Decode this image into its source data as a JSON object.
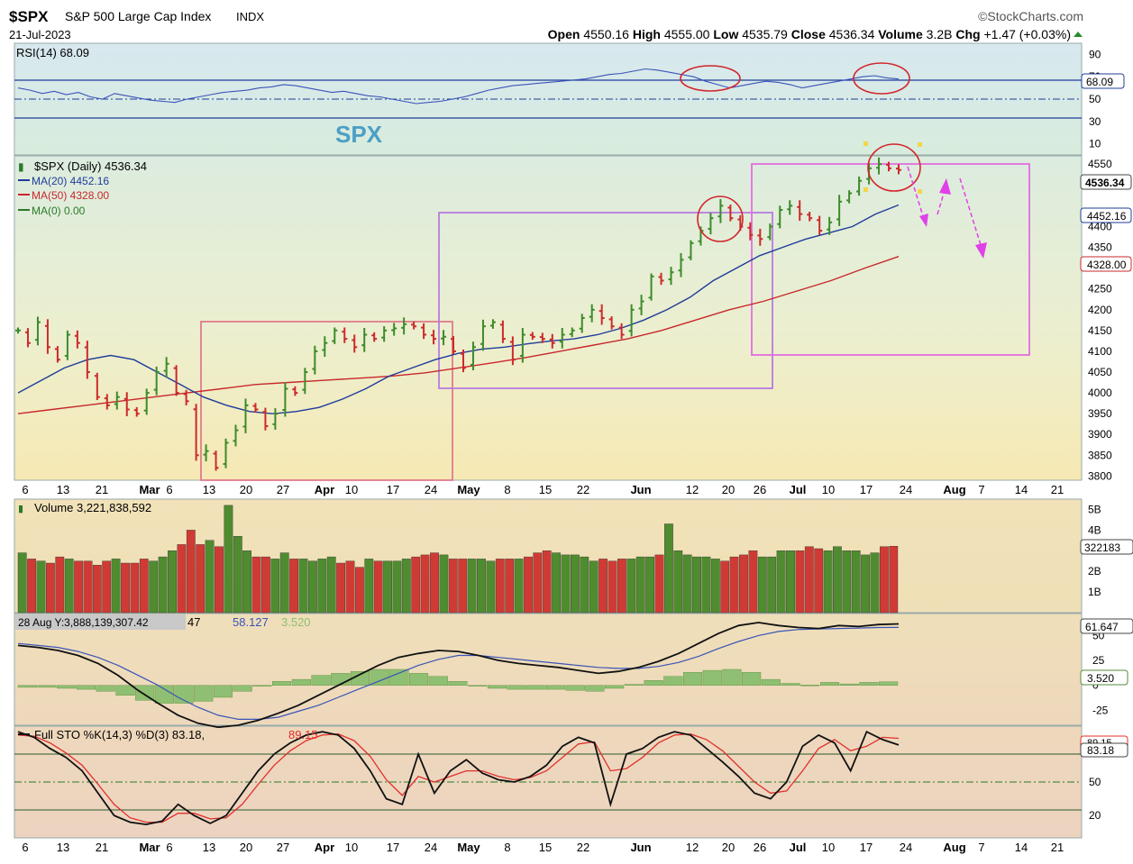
{
  "header": {
    "symbol": "$SPX",
    "name": "S&P 500 Large Cap Index",
    "exchange": "INDX",
    "date": "21-Jul-2023",
    "brand": "©StockCharts.com",
    "quote": {
      "open_label": "Open",
      "open": "4550.16",
      "high_label": "High",
      "high": "4555.00",
      "low_label": "Low",
      "low": "4535.79",
      "close_label": "Close",
      "close": "4536.34",
      "volume_label": "Volume",
      "volume": "3.2B",
      "chg_label": "Chg",
      "chg": "+1.47 (+0.03%)",
      "chg_icon": "triangle-up-icon"
    }
  },
  "panels": {
    "rsi": {
      "legend": "RSI(14) 68.09",
      "value_tag": "68.09",
      "ticks": [
        "90",
        "70",
        "50",
        "30",
        "10"
      ],
      "watermark": "SPX"
    },
    "price": {
      "legend": [
        "$SPX (Daily) 4536.34",
        "MA(20) 4452.16",
        "MA(50) 4328.00",
        "MA(0) 0.00"
      ],
      "tags": [
        "4536.34",
        "4452.16",
        "4328.00"
      ],
      "ticks": [
        "4550",
        "4500",
        "4400",
        "4350",
        "4300",
        "4250",
        "4200",
        "4150",
        "4100",
        "4050",
        "4000",
        "3950",
        "3900",
        "3850",
        "3800"
      ]
    },
    "volume": {
      "legend": "Volume 3,221,838,592",
      "ticks": [
        "5B",
        "4B",
        "3B",
        "2B",
        "1B"
      ],
      "value_tag": "322183"
    },
    "macd": {
      "legend_tooltip": "28 Aug Y:3,888,139,307.42",
      "legend_rest": "47",
      "signal_value": "58.127",
      "hist_value": "3.520",
      "tags": [
        "61.647",
        "3.520"
      ],
      "ticks": [
        "50",
        "25",
        "0",
        "-25"
      ]
    },
    "sto": {
      "legend_a": "Full STO %K(14,3) %D(3) 83.18,",
      "legend_b": "89.15",
      "tags": [
        "89.15",
        "83.18"
      ],
      "ticks": [
        "80",
        "50",
        "20"
      ]
    }
  },
  "x_axis": {
    "labels": [
      {
        "t": "6",
        "b": false
      },
      {
        "t": "13",
        "b": false
      },
      {
        "t": "21",
        "b": false
      },
      {
        "t": "Mar",
        "b": true
      },
      {
        "t": "6",
        "b": false
      },
      {
        "t": "13",
        "b": false
      },
      {
        "t": "20",
        "b": false
      },
      {
        "t": "27",
        "b": false
      },
      {
        "t": "Apr",
        "b": true
      },
      {
        "t": "10",
        "b": false
      },
      {
        "t": "17",
        "b": false
      },
      {
        "t": "24",
        "b": false
      },
      {
        "t": "May",
        "b": true
      },
      {
        "t": "8",
        "b": false
      },
      {
        "t": "15",
        "b": false
      },
      {
        "t": "22",
        "b": false
      },
      {
        "t": "Jun",
        "b": true
      },
      {
        "t": "12",
        "b": false
      },
      {
        "t": "20",
        "b": false
      },
      {
        "t": "26",
        "b": false
      },
      {
        "t": "Jul",
        "b": true
      },
      {
        "t": "10",
        "b": false
      },
      {
        "t": "17",
        "b": false
      },
      {
        "t": "24",
        "b": false
      },
      {
        "t": "Aug",
        "b": true
      },
      {
        "t": "7",
        "b": false
      },
      {
        "t": "14",
        "b": false
      },
      {
        "t": "21",
        "b": false
      }
    ]
  },
  "colors": {
    "up": "#3d8b2a",
    "down": "#cc2a2a",
    "ma20": "#1f3c9a",
    "ma50": "#c8282c",
    "annotation_box_red": "#e07b8c",
    "annotation_box_purple": "#b97ae0",
    "annotation_box_magenta": "#e36de0",
    "arrow": "#e040e8",
    "circle": "#d2262c"
  },
  "chart_data": [
    {
      "type": "line",
      "title": "RSI(14) 68.09",
      "ylim": [
        0,
        100
      ],
      "levels": [
        70,
        50,
        30
      ],
      "series": [
        {
          "name": "RSI(14)",
          "values": [
            60,
            58,
            55,
            57,
            54,
            56,
            52,
            50,
            55,
            53,
            51,
            49,
            48,
            47,
            50,
            52,
            54,
            56,
            57,
            58,
            60,
            61,
            63,
            62,
            60,
            58,
            56,
            57,
            55,
            53,
            52,
            50,
            48,
            46,
            47,
            48,
            50,
            52,
            55,
            58,
            60,
            62,
            63,
            64,
            65,
            66,
            67,
            68,
            70,
            72,
            73,
            75,
            77,
            76,
            74,
            72,
            70,
            66,
            63,
            60,
            62,
            64,
            66,
            65,
            63,
            60,
            62,
            64,
            66,
            68,
            70,
            71,
            69,
            68
          ]
        }
      ]
    },
    {
      "type": "bar",
      "title": "$SPX (Daily) 4536.34",
      "ylim": [
        3790,
        4570
      ],
      "series": [
        {
          "name": "$SPX (Daily)",
          "close": [
            4150,
            4120,
            4170,
            4110,
            4080,
            4140,
            4120,
            4050,
            3990,
            3970,
            3990,
            3960,
            3950,
            4000,
            4050,
            4070,
            4000,
            3980,
            3850,
            3860,
            3820,
            3880,
            3910,
            3970,
            3960,
            3920,
            3950,
            4010,
            4000,
            4050,
            4100,
            4120,
            4150,
            4130,
            4110,
            4140,
            4130,
            4150,
            4155,
            4165,
            4160,
            4140,
            4130,
            4135,
            4100,
            4060,
            4110,
            4160,
            4170,
            4130,
            4080,
            4140,
            4135,
            4130,
            4120,
            4140,
            4150,
            4180,
            4200,
            4180,
            4160,
            4140,
            4200,
            4220,
            4280,
            4270,
            4290,
            4320,
            4360,
            4390,
            4420,
            4450,
            4420,
            4400,
            4380,
            4370,
            4400,
            4440,
            4450,
            4430,
            4420,
            4390,
            4410,
            4460,
            4480,
            4510,
            4540,
            4550,
            4540,
            4536
          ]
        }
      ]
    },
    {
      "type": "line",
      "title": "MA(20) 4452.16",
      "series": [
        {
          "name": "MA(20)",
          "values": [
            4000,
            4030,
            4060,
            4080,
            4090,
            4080,
            4050,
            4020,
            3990,
            3970,
            3955,
            3950,
            3955,
            3965,
            3985,
            4010,
            4040,
            4060,
            4080,
            4095,
            4105,
            4110,
            4118,
            4125,
            4130,
            4140,
            4155,
            4175,
            4200,
            4230,
            4270,
            4300,
            4330,
            4350,
            4370,
            4385,
            4400,
            4430,
            4452
          ]
        },
        {
          "name": "MA(50)",
          "values": [
            3950,
            3960,
            3970,
            3980,
            3990,
            4000,
            4010,
            4020,
            4025,
            4030,
            4035,
            4040,
            4048,
            4060,
            4072,
            4085,
            4100,
            4115,
            4130,
            4150,
            4175,
            4200,
            4220,
            4245,
            4270,
            4300,
            4328
          ]
        },
        {
          "name": "MA(0)",
          "values": [
            0
          ]
        }
      ]
    },
    {
      "type": "bar",
      "title": "Volume 3,221,838,592",
      "ylim": [
        0,
        5500000000
      ],
      "series": [
        {
          "name": "Volume",
          "values": [
            2.9,
            2.6,
            2.5,
            2.4,
            2.7,
            2.6,
            2.5,
            2.5,
            2.3,
            2.5,
            2.6,
            2.4,
            2.4,
            2.6,
            2.5,
            2.7,
            3.0,
            3.3,
            4.0,
            3.3,
            3.5,
            3.2,
            5.2,
            3.7,
            3.0,
            2.7,
            2.7,
            2.6,
            2.9,
            2.6,
            2.6,
            2.5,
            2.6,
            2.7,
            2.4,
            2.5,
            2.2,
            2.6,
            2.5,
            2.5,
            2.5,
            2.6,
            2.7,
            2.8,
            2.9,
            2.8,
            2.6,
            2.6,
            2.6,
            2.6,
            2.5,
            2.6,
            2.6,
            2.6,
            2.7,
            2.9,
            3.0,
            2.9,
            2.8,
            2.8,
            2.7,
            2.5,
            2.6,
            2.5,
            2.6,
            2.6,
            2.7,
            2.7,
            2.8,
            4.3,
            3.0,
            2.8,
            2.7,
            2.7,
            2.6,
            2.5,
            2.7,
            2.8,
            3.0,
            2.7,
            2.7,
            3.0,
            3.0,
            3.0,
            3.2,
            3.1,
            3.0,
            3.2,
            3.0,
            3.0,
            2.8,
            2.9,
            3.2,
            3.22
          ]
        }
      ]
    },
    {
      "type": "line",
      "title": "MACD",
      "series": [
        {
          "name": "MACD",
          "values": [
            40,
            38,
            35,
            30,
            22,
            10,
            -5,
            -18,
            -30,
            -38,
            -42,
            -40,
            -35,
            -28,
            -20,
            -10,
            0,
            10,
            20,
            28,
            32,
            35,
            34,
            30,
            25,
            22,
            20,
            18,
            15,
            12,
            14,
            18,
            24,
            32,
            42,
            52,
            60,
            63,
            60,
            58,
            57,
            60,
            59,
            61,
            61.6
          ]
        },
        {
          "name": "Signal",
          "values": [
            42,
            40,
            38,
            34,
            28,
            20,
            10,
            0,
            -12,
            -22,
            -30,
            -34,
            -34,
            -32,
            -26,
            -20,
            -12,
            -4,
            4,
            12,
            20,
            26,
            30,
            30,
            28,
            26,
            24,
            22,
            20,
            18,
            17,
            17,
            19,
            23,
            29,
            37,
            44,
            50,
            54,
            56,
            56.5,
            57,
            57.5,
            58,
            58.127
          ]
        },
        {
          "name": "Histogram",
          "values": [
            -2,
            -2,
            -3,
            -4,
            -6,
            -10,
            -15,
            -18,
            -18,
            -16,
            -12,
            -6,
            -1,
            4,
            6,
            10,
            12,
            14,
            16,
            16,
            12,
            9,
            4,
            0,
            -3,
            -4,
            -4,
            -4,
            -5,
            -6,
            -3,
            1,
            5,
            9,
            13,
            15,
            16,
            13,
            6,
            2,
            0.5,
            3,
            1.5,
            3,
            3.52
          ]
        }
      ]
    },
    {
      "type": "line",
      "title": "Full STO %K(14,3) %D(3) 83.18, 89.15",
      "ylim": [
        0,
        100
      ],
      "series": [
        {
          "name": "%K",
          "values": [
            95,
            90,
            80,
            72,
            60,
            40,
            20,
            14,
            12,
            15,
            30,
            20,
            13,
            20,
            40,
            60,
            75,
            85,
            92,
            95,
            92,
            80,
            60,
            35,
            30,
            75,
            40,
            60,
            70,
            58,
            52,
            50,
            55,
            65,
            82,
            90,
            85,
            30,
            75,
            80,
            90,
            95,
            92,
            80,
            68,
            55,
            40,
            35,
            50,
            82,
            92,
            85,
            60,
            95,
            88,
            83.18
          ]
        },
        {
          "name": "%D",
          "values": [
            92,
            91,
            85,
            76,
            65,
            48,
            30,
            18,
            14,
            14,
            22,
            22,
            17,
            18,
            30,
            48,
            65,
            78,
            87,
            92,
            93,
            87,
            73,
            52,
            38,
            55,
            50,
            55,
            60,
            60,
            55,
            52,
            54,
            60,
            72,
            84,
            86,
            60,
            62,
            72,
            85,
            92,
            93,
            88,
            78,
            64,
            50,
            40,
            42,
            60,
            80,
            88,
            78,
            82,
            90,
            89.15
          ]
        }
      ]
    }
  ]
}
